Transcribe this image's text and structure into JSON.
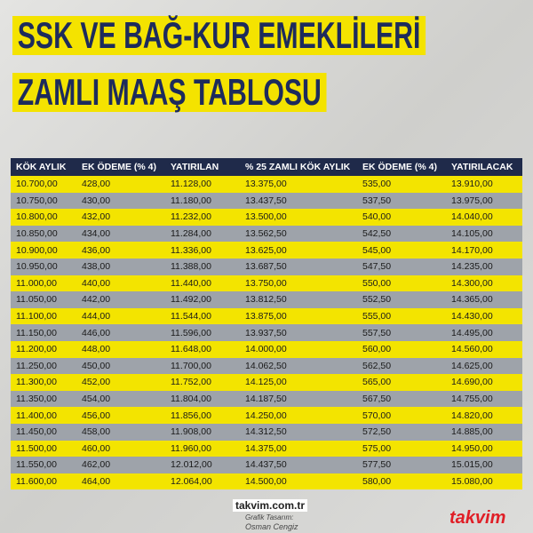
{
  "header": {
    "title_line1": "SSK VE BAĞ-KUR EMEKLİLERİ",
    "title_line2": "ZAMLI MAAŞ TABLOSU"
  },
  "table": {
    "columns": [
      "KÖK AYLIK",
      "EK ÖDEME (% 4)",
      "YATIRILAN",
      "% 25 ZAMLI KÖK AYLIK",
      "EK ÖDEME (% 4)",
      "YATIRILACAK"
    ],
    "rows": [
      [
        "10.700,00",
        "428,00",
        "11.128,00",
        "13.375,00",
        "535,00",
        "13.910,00"
      ],
      [
        "10.750,00",
        "430,00",
        "11.180,00",
        "13.437,50",
        "537,50",
        "13.975,00"
      ],
      [
        "10.800,00",
        "432,00",
        "11.232,00",
        "13.500,00",
        "540,00",
        "14.040,00"
      ],
      [
        "10.850,00",
        "434,00",
        "11.284,00",
        "13.562,50",
        "542,50",
        "14.105,00"
      ],
      [
        "10.900,00",
        "436,00",
        "11.336,00",
        "13.625,00",
        "545,00",
        "14.170,00"
      ],
      [
        "10.950,00",
        "438,00",
        "11.388,00",
        "13.687,50",
        "547,50",
        "14.235,00"
      ],
      [
        "11.000,00",
        "440,00",
        "11.440,00",
        "13.750,00",
        "550,00",
        "14.300,00"
      ],
      [
        "11.050,00",
        "442,00",
        "11.492,00",
        "13.812,50",
        "552,50",
        "14.365,00"
      ],
      [
        "11.100,00",
        "444,00",
        "11.544,00",
        "13.875,00",
        "555,00",
        "14.430,00"
      ],
      [
        "11.150,00",
        "446,00",
        "11.596,00",
        "13.937,50",
        "557,50",
        "14.495,00"
      ],
      [
        "11.200,00",
        "448,00",
        "11.648,00",
        "14.000,00",
        "560,00",
        "14.560,00"
      ],
      [
        "11.250,00",
        "450,00",
        "11.700,00",
        "14.062,50",
        "562,50",
        "14.625,00"
      ],
      [
        "11.300,00",
        "452,00",
        "11.752,00",
        "14.125,00",
        "565,00",
        "14.690,00"
      ],
      [
        "11.350,00",
        "454,00",
        "11.804,00",
        "14.187,50",
        "567,50",
        "14.755,00"
      ],
      [
        "11.400,00",
        "456,00",
        "11.856,00",
        "14.250,00",
        "570,00",
        "14.820,00"
      ],
      [
        "11.450,00",
        "458,00",
        "11.908,00",
        "14.312,50",
        "572,50",
        "14.885,00"
      ],
      [
        "11.500,00",
        "460,00",
        "11.960,00",
        "14.375,00",
        "575,00",
        "14.950,00"
      ],
      [
        "11.550,00",
        "462,00",
        "12.012,00",
        "14.437,50",
        "577,50",
        "15.015,00"
      ],
      [
        "11.600,00",
        "464,00",
        "12.064,00",
        "14.500,00",
        "580,00",
        "15.080,00"
      ]
    ]
  },
  "footer": {
    "site": "takvim.com.tr",
    "credit_role": "Grafik Tasarım:",
    "credit_name": "Osman Cengiz",
    "logo": "takvim"
  }
}
